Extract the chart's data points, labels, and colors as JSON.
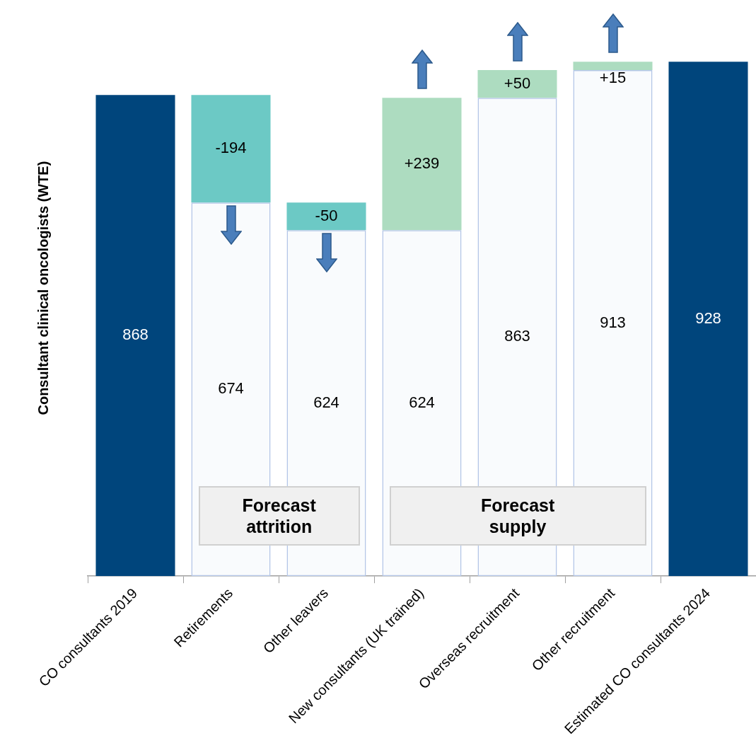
{
  "chart_data": {
    "type": "bar",
    "stacked": true,
    "ylabel": "Consultant clinical oncologists (WTE)",
    "categories": [
      "CO consultants 2019",
      "Retirements",
      "Other leavers",
      "New consultants (UK trained)",
      "Overseas recruitment",
      "Other recruitment",
      "Estimated CO consultants 2024"
    ],
    "series": [
      {
        "color": "#00457c",
        "values": [
          868,
          null,
          null,
          null,
          null,
          null,
          928
        ],
        "value_labels": [
          "868",
          null,
          null,
          null,
          null,
          null,
          "928"
        ]
      },
      {
        "color": "#b4c6e7",
        "values": [
          null,
          674,
          624,
          624,
          863,
          913,
          null
        ],
        "value_labels": [
          null,
          "674",
          "624",
          "624",
          "863",
          "913",
          null
        ]
      },
      {
        "colors": [
          null,
          "#6cc9c5",
          "#6cc9c5",
          "#addcc0",
          "#addcc0",
          "#addcc0",
          null
        ],
        "values": [
          null,
          194,
          50,
          239,
          50,
          15,
          null
        ],
        "value_labels": [
          null,
          null,
          null,
          "+239",
          "+50",
          "+15",
          null
        ]
      }
    ],
    "annotations": [
      "Forecast attrition",
      "Forecast supply",
      {
        "text": "-194",
        "x": "Retirements",
        "y": 868
      },
      {
        "text": "-50",
        "x": "Other leavers",
        "y": 674
      }
    ],
    "legend": false,
    "grid": false,
    "tick_labels": "x"
  }
}
